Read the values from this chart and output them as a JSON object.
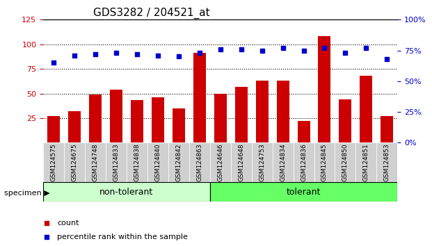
{
  "title": "GDS3282 / 204521_at",
  "categories": [
    "GSM124575",
    "GSM124675",
    "GSM124748",
    "GSM124833",
    "GSM124838",
    "GSM124840",
    "GSM124842",
    "GSM124863",
    "GSM124646",
    "GSM124648",
    "GSM124753",
    "GSM124834",
    "GSM124836",
    "GSM124845",
    "GSM124850",
    "GSM124851",
    "GSM124853"
  ],
  "bar_values": [
    27,
    32,
    49,
    54,
    43,
    46,
    35,
    91,
    50,
    57,
    63,
    63,
    22,
    108,
    44,
    68,
    27
  ],
  "dot_values": [
    65,
    71,
    72,
    73,
    72,
    71,
    70,
    73,
    76,
    76,
    75,
    77,
    75,
    77,
    73,
    77,
    68
  ],
  "group_labels": [
    "non-tolerant",
    "tolerant"
  ],
  "group_boundaries": [
    0,
    8,
    17
  ],
  "bar_color": "#cc0000",
  "dot_color": "#0000cc",
  "left_ylim": [
    0,
    125
  ],
  "right_ylim": [
    0,
    100
  ],
  "left_yticks": [
    25,
    50,
    75,
    100,
    125
  ],
  "right_yticks": [
    0,
    25,
    50,
    75,
    100
  ],
  "right_yticklabels": [
    "0%",
    "25%",
    "50%",
    "75%",
    "100%"
  ],
  "grid_values": [
    25,
    50,
    75,
    100
  ],
  "legend_count_label": "count",
  "legend_pct_label": "percentile rank within the sample",
  "specimen_label": "specimen",
  "nontolerant_color": "#ccffcc",
  "tolerant_color": "#66ff66",
  "title_fontsize": 11,
  "axis_label_fontsize": 9,
  "tick_fontsize": 8,
  "legend_fontsize": 8,
  "bar_width": 0.6
}
